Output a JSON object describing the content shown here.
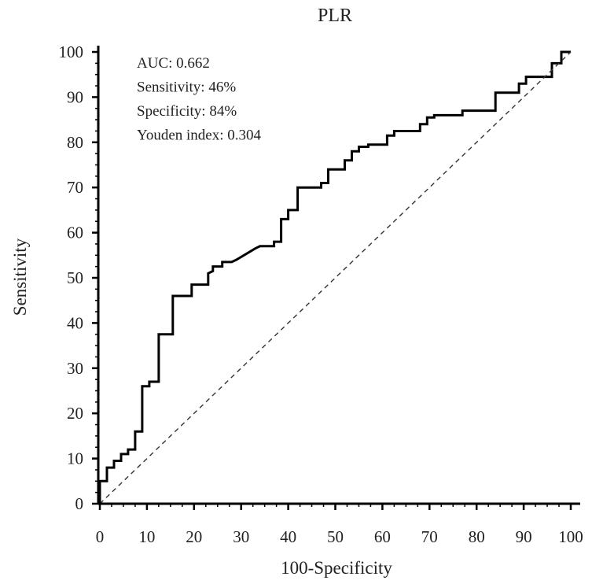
{
  "chart_data": {
    "type": "line",
    "title": "PLR",
    "xlabel": "100-Specificity",
    "ylabel": "Sensitivity",
    "xlim": [
      0,
      100
    ],
    "ylim": [
      0,
      100
    ],
    "xticks": [
      "0",
      "10",
      "20",
      "30",
      "40",
      "50",
      "60",
      "70",
      "80",
      "90",
      "100"
    ],
    "yticks": [
      "0",
      "10",
      "20",
      "30",
      "40",
      "50",
      "60",
      "70",
      "80",
      "90",
      "100"
    ],
    "grid": false,
    "stats": [
      "AUC: 0.662",
      "Sensitivity: 46%",
      "Specificity: 84%",
      "Youden index: 0.304"
    ],
    "series": [
      {
        "style": "solid",
        "color": "#000000",
        "points": [
          [
            0,
            0
          ],
          [
            0,
            5
          ],
          [
            1.5,
            5
          ],
          [
            1.5,
            8
          ],
          [
            3,
            8
          ],
          [
            3,
            9.5
          ],
          [
            4.5,
            9.5
          ],
          [
            4.5,
            11
          ],
          [
            6,
            11
          ],
          [
            6,
            12
          ],
          [
            7.5,
            12
          ],
          [
            7.5,
            16
          ],
          [
            9,
            16
          ],
          [
            9,
            26
          ],
          [
            10.5,
            26
          ],
          [
            10.5,
            27
          ],
          [
            12.5,
            27
          ],
          [
            12.5,
            37.5
          ],
          [
            15.5,
            37.5
          ],
          [
            15.5,
            46
          ],
          [
            19.5,
            46
          ],
          [
            19.5,
            48.5
          ],
          [
            23,
            48.5
          ],
          [
            23,
            51
          ],
          [
            24,
            51.5
          ],
          [
            24,
            52.5
          ],
          [
            26,
            52.5
          ],
          [
            26,
            53.5
          ],
          [
            28,
            53.5
          ],
          [
            29,
            54
          ],
          [
            33,
            56.5
          ],
          [
            34,
            57
          ],
          [
            37,
            57
          ],
          [
            37,
            58
          ],
          [
            38.5,
            58
          ],
          [
            38.5,
            63
          ],
          [
            40,
            63
          ],
          [
            40,
            65
          ],
          [
            42,
            65
          ],
          [
            42,
            70
          ],
          [
            47,
            70
          ],
          [
            47,
            71
          ],
          [
            48.5,
            71
          ],
          [
            48.5,
            74
          ],
          [
            52,
            74
          ],
          [
            52,
            76
          ],
          [
            53.5,
            76
          ],
          [
            53.5,
            78
          ],
          [
            55,
            78
          ],
          [
            55,
            79
          ],
          [
            57,
            79
          ],
          [
            57,
            79.5
          ],
          [
            61,
            79.5
          ],
          [
            61,
            81.5
          ],
          [
            62.5,
            81.5
          ],
          [
            62.5,
            82.5
          ],
          [
            68,
            82.5
          ],
          [
            68,
            84
          ],
          [
            69.5,
            84
          ],
          [
            69.5,
            85.5
          ],
          [
            71,
            85.5
          ],
          [
            71,
            86
          ],
          [
            77,
            86
          ],
          [
            77,
            87
          ],
          [
            84,
            87
          ],
          [
            84,
            91
          ],
          [
            89,
            91
          ],
          [
            89,
            93
          ],
          [
            90.5,
            93
          ],
          [
            90.5,
            94.5
          ],
          [
            96,
            94.5
          ],
          [
            96,
            97.5
          ],
          [
            98,
            97.5
          ],
          [
            98,
            100
          ],
          [
            100,
            100
          ]
        ]
      },
      {
        "style": "dashed",
        "color": "#333333",
        "points": [
          [
            0,
            0
          ],
          [
            100,
            100
          ]
        ]
      }
    ]
  }
}
